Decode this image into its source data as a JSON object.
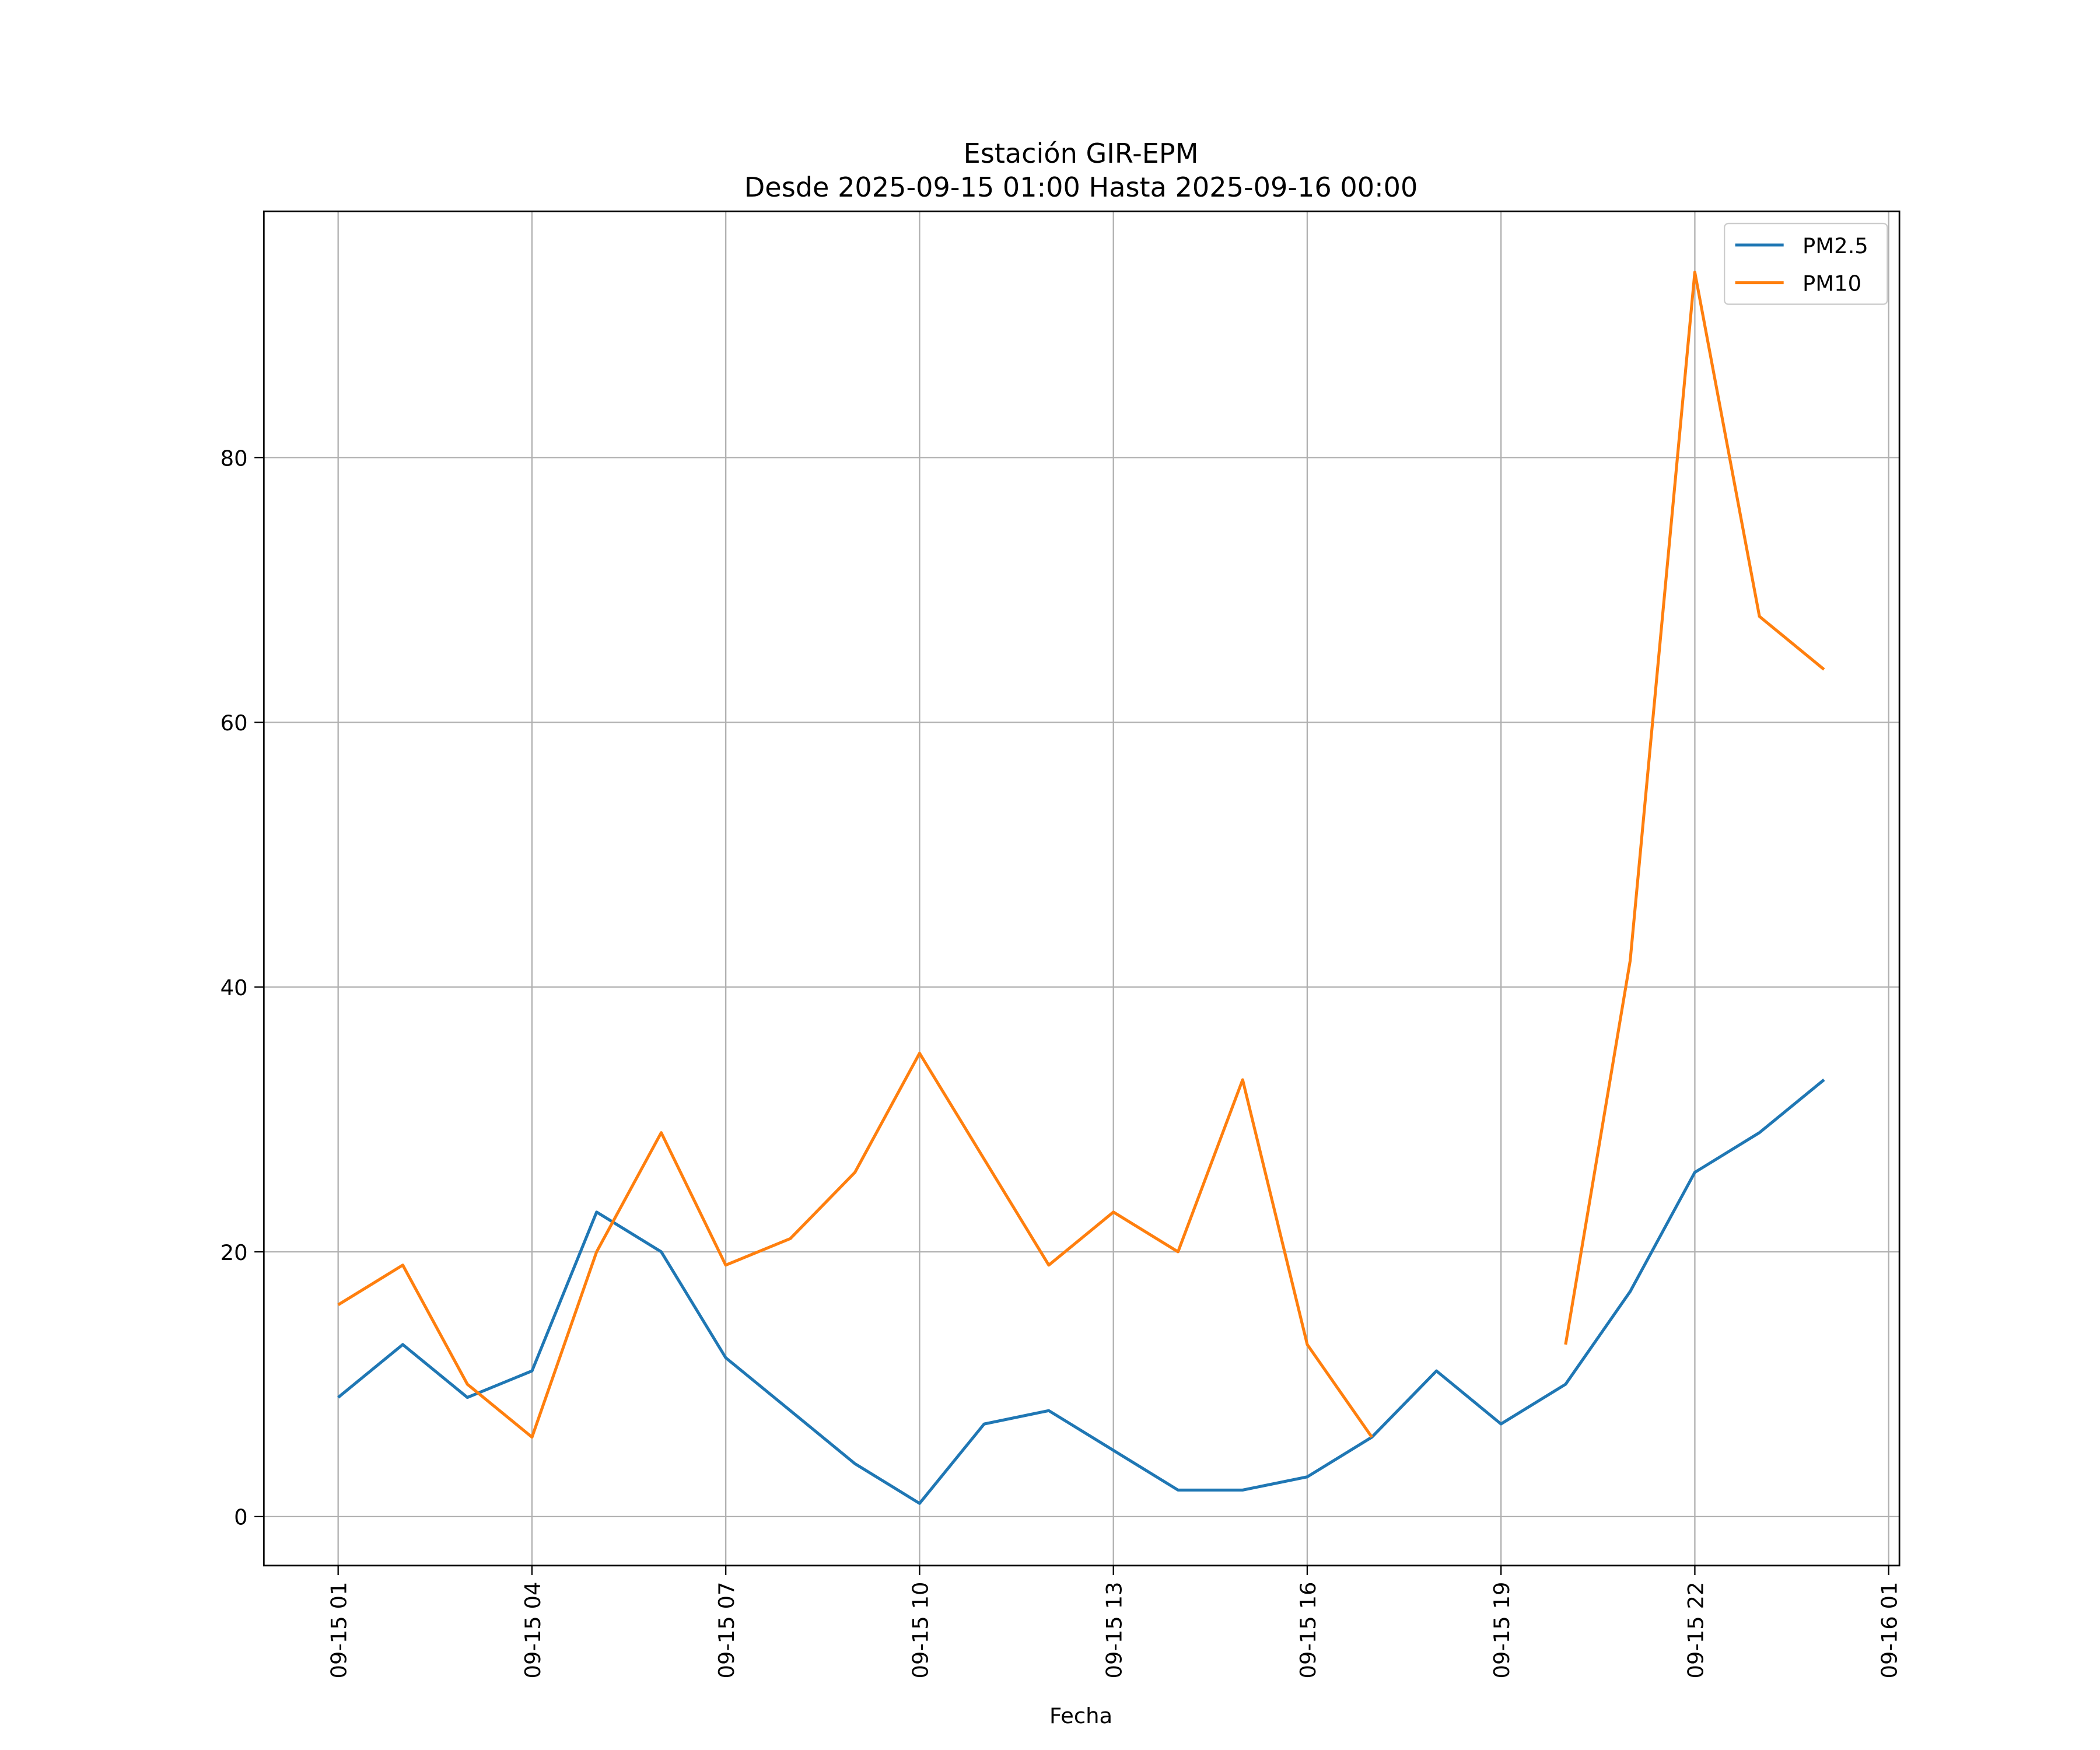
{
  "chart_data": {
    "type": "line",
    "title": "Estación GIR-EPM",
    "subtitle": "Desde 2025-09-15 01:00 Hasta 2025-09-16 00:00",
    "xlabel": "Fecha",
    "ylabel": "",
    "x": [
      "2025-09-15 01:00",
      "2025-09-15 02:00",
      "2025-09-15 03:00",
      "2025-09-15 04:00",
      "2025-09-15 05:00",
      "2025-09-15 06:00",
      "2025-09-15 07:00",
      "2025-09-15 08:00",
      "2025-09-15 09:00",
      "2025-09-15 10:00",
      "2025-09-15 11:00",
      "2025-09-15 12:00",
      "2025-09-15 13:00",
      "2025-09-15 14:00",
      "2025-09-15 15:00",
      "2025-09-15 16:00",
      "2025-09-15 17:00",
      "2025-09-15 18:00",
      "2025-09-15 19:00",
      "2025-09-15 20:00",
      "2025-09-15 21:00",
      "2025-09-15 22:00",
      "2025-09-15 23:00",
      "2025-09-16 00:00"
    ],
    "series": [
      {
        "name": "PM2.5",
        "color": "#1f77b4",
        "values": [
          9,
          13,
          9,
          11,
          23,
          20,
          12,
          8,
          4,
          1,
          7,
          8,
          5,
          2,
          2,
          3,
          6,
          11,
          7,
          10,
          17,
          26,
          29,
          33
        ]
      },
      {
        "name": "PM10",
        "color": "#ff7f0e",
        "values": [
          16,
          19,
          10,
          6,
          20,
          29,
          19,
          21,
          26,
          35,
          27,
          19,
          23,
          20,
          33,
          13,
          6,
          null,
          null,
          13,
          42,
          94,
          68,
          64
        ]
      }
    ],
    "xlim": [
      "2025-09-14 23:51",
      "2025-09-16 01:10"
    ],
    "ylim": [
      -3.7,
      98.6
    ],
    "xticks": [
      "2025-09-15 01:00",
      "2025-09-15 04:00",
      "2025-09-15 07:00",
      "2025-09-15 10:00",
      "2025-09-15 13:00",
      "2025-09-15 16:00",
      "2025-09-15 19:00",
      "2025-09-15 22:00",
      "2025-09-16 01:00"
    ],
    "xtick_labels": [
      "09-15 01",
      "09-15 04",
      "09-15 07",
      "09-15 10",
      "09-15 13",
      "09-15 16",
      "09-15 19",
      "09-15 22",
      "09-16 01"
    ],
    "yticks": [
      0,
      20,
      40,
      60,
      80
    ],
    "ytick_labels": [
      "0",
      "20",
      "40",
      "60",
      "80"
    ],
    "grid": true,
    "legend_position": "top-right"
  }
}
